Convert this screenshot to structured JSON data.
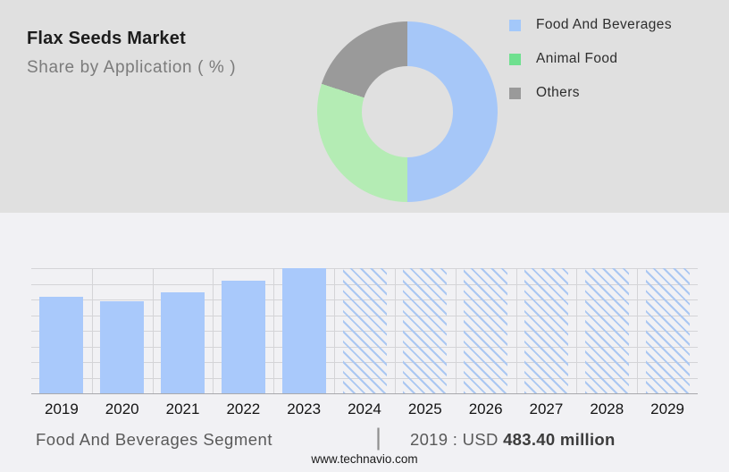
{
  "header": {
    "title": "Flax Seeds Market",
    "subtitle": "Share by Application ( % )"
  },
  "legend": {
    "items": [
      {
        "label": "Food And Beverages",
        "swatch_color": "#a3c8fa"
      },
      {
        "label": "Animal Food",
        "swatch_color": "#6fe08f"
      },
      {
        "label": "Others",
        "swatch_color": "#9a9a9a"
      }
    ]
  },
  "chart_data": [
    {
      "type": "pie",
      "subtype": "donut",
      "title": "Flax Seeds Market - Share by Application ( % )",
      "labels": [
        "Food And Beverages",
        "Animal Food",
        "Others"
      ],
      "values_pct": [
        50,
        30,
        20
      ],
      "colors": [
        "#a6c7f8",
        "#b4ecb4",
        "#9a9a9a"
      ],
      "hole_ratio": 0.5,
      "start_angle_deg": 0,
      "direction": "clockwise",
      "legend_position": "right"
    },
    {
      "type": "bar",
      "categories": [
        "2019",
        "2020",
        "2021",
        "2022",
        "2023",
        "2024",
        "2025",
        "2026",
        "2027",
        "2028",
        "2029"
      ],
      "bars": [
        {
          "year": "2019",
          "height_fraction": 0.774,
          "style": "solid"
        },
        {
          "year": "2020",
          "height_fraction": 0.736,
          "style": "solid"
        },
        {
          "year": "2021",
          "height_fraction": 0.809,
          "style": "solid"
        },
        {
          "year": "2022",
          "height_fraction": 0.9,
          "style": "solid"
        },
        {
          "year": "2023",
          "height_fraction": 1.0,
          "style": "solid"
        },
        {
          "year": "2024",
          "height_fraction": 1.0,
          "style": "hatched"
        },
        {
          "year": "2025",
          "height_fraction": 1.0,
          "style": "hatched"
        },
        {
          "year": "2026",
          "height_fraction": 1.0,
          "style": "hatched"
        },
        {
          "year": "2027",
          "height_fraction": 1.0,
          "style": "hatched"
        },
        {
          "year": "2028",
          "height_fraction": 1.0,
          "style": "hatched"
        },
        {
          "year": "2029",
          "height_fraction": 1.0,
          "style": "hatched"
        }
      ],
      "bar_color": "#a9c9fb",
      "hatch_color": "#aac7f2",
      "grid": true,
      "y_axis_labels": false,
      "known_values": {
        "2019": "USD 483.40 million"
      }
    }
  ],
  "footer": {
    "segment_label": "Food And Beverages Segment",
    "separator": "|",
    "value_prefix": "2019 : USD ",
    "value_bold": "483.40 million",
    "website": "www.technavio.com"
  }
}
